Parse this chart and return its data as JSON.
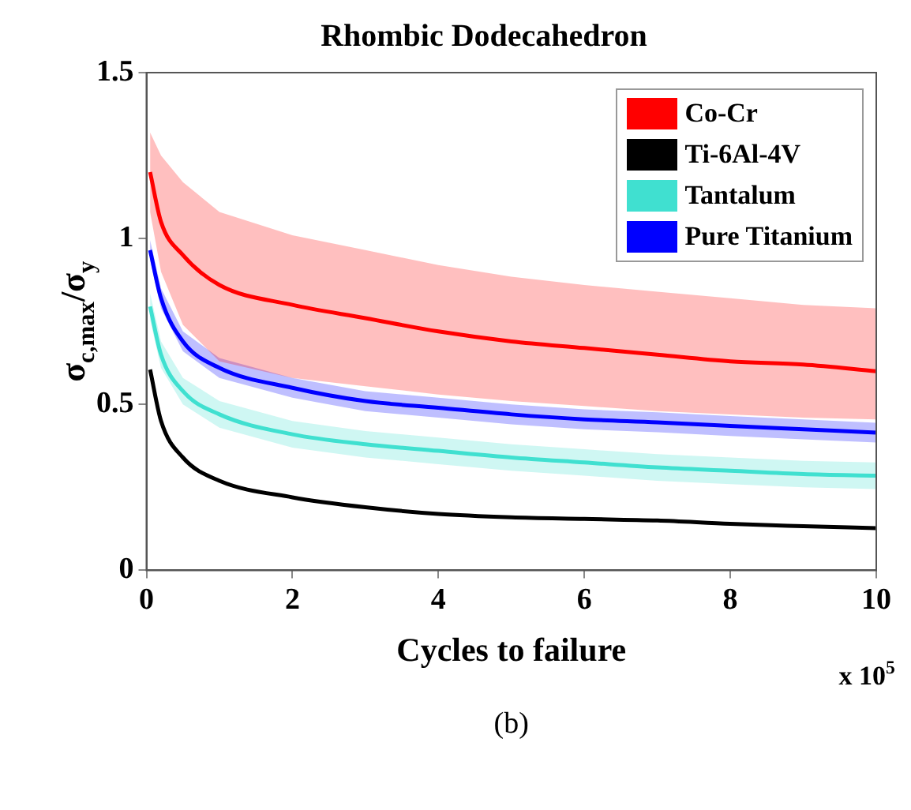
{
  "chart_data": {
    "type": "line",
    "title": "Rhombic Dodecahedron",
    "xlabel": "Cycles to failure",
    "ylabel": "σ$_{c,max}$/σ$_{y}$",
    "annotations": [
      "x 10$^{5}$",
      "(b)"
    ],
    "x": [
      0.05,
      0.2,
      0.5,
      1,
      2,
      3,
      4,
      5,
      6,
      7,
      8,
      9,
      10
    ],
    "series": [
      {
        "name": "Co-Cr",
        "color": "#ff0000",
        "values": [
          1.2,
          1.05,
          0.95,
          0.86,
          0.8,
          0.76,
          0.72,
          0.69,
          0.67,
          0.65,
          0.63,
          0.62,
          0.6
        ],
        "upper": [
          1.32,
          1.25,
          1.17,
          1.08,
          1.01,
          0.965,
          0.92,
          0.885,
          0.86,
          0.84,
          0.82,
          0.8,
          0.79
        ],
        "lower": [
          1.08,
          0.9,
          0.74,
          0.63,
          0.58,
          0.555,
          0.53,
          0.51,
          0.495,
          0.48,
          0.47,
          0.46,
          0.455
        ]
      },
      {
        "name": "Ti-6Al-4V",
        "color": "#000000",
        "values": [
          0.605,
          0.45,
          0.34,
          0.27,
          0.22,
          0.19,
          0.17,
          0.16,
          0.155,
          0.15,
          0.14,
          0.133,
          0.127
        ]
      },
      {
        "name": "Tantalum",
        "color": "#40e0d0",
        "values": [
          0.795,
          0.65,
          0.54,
          0.47,
          0.41,
          0.38,
          0.36,
          0.34,
          0.325,
          0.31,
          0.3,
          0.29,
          0.285
        ],
        "upper": [
          0.835,
          0.69,
          0.58,
          0.51,
          0.45,
          0.42,
          0.4,
          0.38,
          0.365,
          0.35,
          0.34,
          0.33,
          0.325
        ],
        "lower": [
          0.755,
          0.61,
          0.5,
          0.43,
          0.37,
          0.34,
          0.32,
          0.3,
          0.285,
          0.27,
          0.26,
          0.25,
          0.245
        ]
      },
      {
        "name": "Pure Titanium",
        "color": "#0000ff",
        "values": [
          0.965,
          0.82,
          0.69,
          0.61,
          0.55,
          0.51,
          0.49,
          0.47,
          0.455,
          0.446,
          0.435,
          0.425,
          0.415
        ],
        "upper": [
          0.995,
          0.85,
          0.72,
          0.64,
          0.58,
          0.54,
          0.52,
          0.5,
          0.485,
          0.476,
          0.465,
          0.455,
          0.445
        ],
        "lower": [
          0.935,
          0.79,
          0.66,
          0.58,
          0.52,
          0.48,
          0.46,
          0.44,
          0.425,
          0.416,
          0.405,
          0.395,
          0.385
        ]
      }
    ],
    "xlim": [
      0,
      10
    ],
    "xticks": [
      0,
      2,
      4,
      6,
      8,
      10
    ],
    "ylim": [
      0,
      1.5
    ],
    "yticks": [
      0,
      0.5,
      1,
      1.5
    ],
    "grid": false,
    "legend": "top right",
    "marker": "none",
    "line_style": "solid"
  }
}
